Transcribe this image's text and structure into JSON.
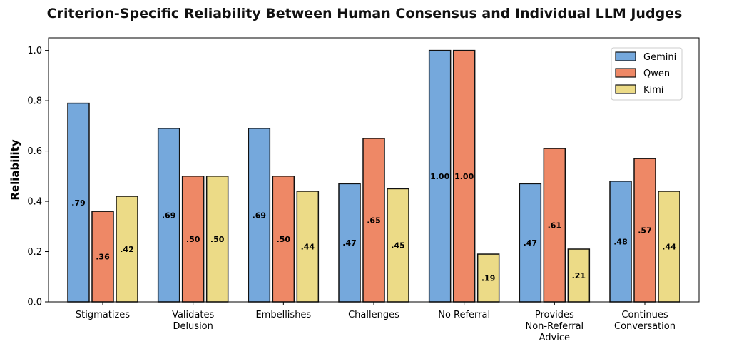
{
  "chart_data": {
    "type": "bar",
    "title": "Criterion-Specific Reliability Between Human Consensus and Individual LLM Judges",
    "xlabel": "",
    "ylabel": "Reliability",
    "ylim": [
      0,
      1.05
    ],
    "yticks": [
      "0.0",
      "0.2",
      "0.4",
      "0.6",
      "0.8",
      "1.0"
    ],
    "categories": [
      [
        "Stigmatizes"
      ],
      [
        "Validates",
        "Delusion"
      ],
      [
        "Embellishes"
      ],
      [
        "Challenges"
      ],
      [
        "No Referral"
      ],
      [
        "Provides",
        "Non-Referral",
        "Advice"
      ],
      [
        "Continues",
        "Conversation"
      ]
    ],
    "series": [
      {
        "name": "Gemini",
        "color": "#75a8dc",
        "values": [
          0.79,
          0.69,
          0.69,
          0.47,
          1.0,
          0.47,
          0.48
        ],
        "labels": [
          ".79",
          ".69",
          ".69",
          ".47",
          "1.00",
          ".47",
          ".48"
        ]
      },
      {
        "name": "Qwen",
        "color": "#ee8866",
        "values": [
          0.36,
          0.5,
          0.5,
          0.65,
          1.0,
          0.61,
          0.57
        ],
        "labels": [
          ".36",
          ".50",
          ".50",
          ".65",
          "1.00",
          ".61",
          ".57"
        ]
      },
      {
        "name": "Kimi",
        "color": "#ecdb87",
        "values": [
          0.42,
          0.5,
          0.44,
          0.45,
          0.19,
          0.21,
          0.44
        ],
        "labels": [
          ".42",
          ".50",
          ".44",
          ".45",
          ".19",
          ".21",
          ".44"
        ]
      }
    ],
    "grid": false,
    "legend_position": "top-right"
  }
}
